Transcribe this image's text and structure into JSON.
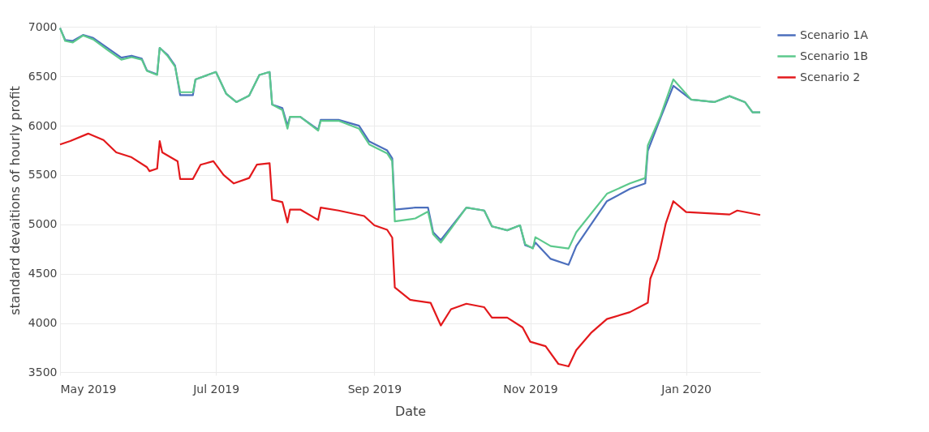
{
  "chart_data": {
    "type": "line",
    "xlabel": "Date",
    "ylabel": "standard devaitions of hourly profit",
    "xlim": [
      "2019-05-01",
      "2020-01-30"
    ],
    "ylim": [
      3470,
      7020
    ],
    "xticks": [
      {
        "value": "2019-05-01",
        "label": "May 2019"
      },
      {
        "value": "2019-07-01",
        "label": "Jul 2019"
      },
      {
        "value": "2019-09-01",
        "label": "Sep 2019"
      },
      {
        "value": "2019-11-01",
        "label": "Nov 2019"
      },
      {
        "value": "2020-01-01",
        "label": "Jan 2020"
      }
    ],
    "yticks": [
      3500,
      4000,
      4500,
      5000,
      5500,
      6000,
      6500,
      7000
    ],
    "grid": true,
    "legend": "top right",
    "line_style": "solid",
    "marker": "none",
    "series": [
      {
        "name": "Scenario 1A",
        "color": "#4c6fbd",
        "x": [
          "2019-05-01",
          "2019-05-03",
          "2019-05-06",
          "2019-05-10",
          "2019-05-14",
          "2019-05-20",
          "2019-05-25",
          "2019-05-29",
          "2019-06-02",
          "2019-06-04",
          "2019-06-08",
          "2019-06-09",
          "2019-06-12",
          "2019-06-15",
          "2019-06-17",
          "2019-06-22",
          "2019-06-23",
          "2019-07-01",
          "2019-07-05",
          "2019-07-09",
          "2019-07-14",
          "2019-07-18",
          "2019-07-22",
          "2019-07-23",
          "2019-07-27",
          "2019-07-29",
          "2019-07-30",
          "2019-08-03",
          "2019-08-10",
          "2019-08-11",
          "2019-08-18",
          "2019-08-26",
          "2019-08-30",
          "2019-09-06",
          "2019-09-08",
          "2019-09-09",
          "2019-09-17",
          "2019-09-22",
          "2019-09-24",
          "2019-09-27",
          "2019-10-07",
          "2019-10-14",
          "2019-10-17",
          "2019-10-23",
          "2019-10-28",
          "2019-10-30",
          "2019-11-02",
          "2019-11-03",
          "2019-11-09",
          "2019-11-16",
          "2019-11-19",
          "2019-12-01",
          "2019-12-10",
          "2019-12-16",
          "2019-12-17",
          "2019-12-22",
          "2019-12-27",
          "2020-01-03",
          "2020-01-12",
          "2020-01-18",
          "2020-01-24",
          "2020-01-27",
          "2020-01-30"
        ],
        "values": [
          6990,
          6870,
          6860,
          6920,
          6890,
          6780,
          6690,
          6710,
          6680,
          6560,
          6520,
          6790,
          6720,
          6610,
          6310,
          6310,
          6470,
          6545,
          6325,
          6240,
          6305,
          6515,
          6545,
          6215,
          6180,
          6000,
          6090,
          6090,
          5960,
          6060,
          6060,
          6000,
          5840,
          5750,
          5670,
          5150,
          5170,
          5170,
          4920,
          4840,
          5170,
          5140,
          4980,
          4940,
          4990,
          4790,
          4760,
          4815,
          4650,
          4590,
          4780,
          5235,
          5360,
          5415,
          5745,
          6080,
          6405,
          6265,
          6240,
          6300,
          6240,
          6135,
          6135
        ]
      },
      {
        "name": "Scenario 1B",
        "color": "#5cc98c",
        "x": [
          "2019-05-01",
          "2019-05-03",
          "2019-05-06",
          "2019-05-10",
          "2019-05-14",
          "2019-05-20",
          "2019-05-25",
          "2019-05-29",
          "2019-06-02",
          "2019-06-04",
          "2019-06-08",
          "2019-06-09",
          "2019-06-12",
          "2019-06-15",
          "2019-06-17",
          "2019-06-22",
          "2019-06-23",
          "2019-07-01",
          "2019-07-05",
          "2019-07-09",
          "2019-07-14",
          "2019-07-18",
          "2019-07-22",
          "2019-07-23",
          "2019-07-27",
          "2019-07-29",
          "2019-07-30",
          "2019-08-03",
          "2019-08-10",
          "2019-08-11",
          "2019-08-18",
          "2019-08-26",
          "2019-08-30",
          "2019-09-06",
          "2019-09-08",
          "2019-09-09",
          "2019-09-17",
          "2019-09-22",
          "2019-09-24",
          "2019-09-27",
          "2019-10-07",
          "2019-10-14",
          "2019-10-17",
          "2019-10-23",
          "2019-10-28",
          "2019-10-30",
          "2019-11-02",
          "2019-11-03",
          "2019-11-09",
          "2019-11-16",
          "2019-11-19",
          "2019-12-01",
          "2019-12-10",
          "2019-12-16",
          "2019-12-17",
          "2019-12-22",
          "2019-12-27",
          "2020-01-03",
          "2020-01-12",
          "2020-01-18",
          "2020-01-24",
          "2020-01-27",
          "2020-01-30"
        ],
        "values": [
          6990,
          6860,
          6845,
          6915,
          6875,
          6760,
          6670,
          6695,
          6670,
          6555,
          6515,
          6790,
          6710,
          6600,
          6340,
          6340,
          6470,
          6545,
          6325,
          6240,
          6305,
          6515,
          6545,
          6215,
          6160,
          5970,
          6090,
          6090,
          5950,
          6050,
          6050,
          5970,
          5810,
          5720,
          5640,
          5030,
          5060,
          5130,
          4900,
          4815,
          5170,
          5140,
          4980,
          4940,
          4990,
          4800,
          4755,
          4870,
          4780,
          4755,
          4920,
          5310,
          5415,
          5470,
          5800,
          6100,
          6470,
          6265,
          6240,
          6300,
          6240,
          6135,
          6135
        ]
      },
      {
        "name": "Scenario 2",
        "color": "#e3191c",
        "x": [
          "2019-05-01",
          "2019-05-05",
          "2019-05-12",
          "2019-05-18",
          "2019-05-23",
          "2019-05-29",
          "2019-06-04",
          "2019-06-05",
          "2019-06-08",
          "2019-06-09",
          "2019-06-10",
          "2019-06-16",
          "2019-06-17",
          "2019-06-22",
          "2019-06-25",
          "2019-06-30",
          "2019-07-04",
          "2019-07-08",
          "2019-07-14",
          "2019-07-17",
          "2019-07-22",
          "2019-07-23",
          "2019-07-27",
          "2019-07-29",
          "2019-07-30",
          "2019-08-03",
          "2019-08-10",
          "2019-08-11",
          "2019-08-18",
          "2019-08-28",
          "2019-09-01",
          "2019-09-06",
          "2019-09-08",
          "2019-09-09",
          "2019-09-15",
          "2019-09-23",
          "2019-09-27",
          "2019-10-01",
          "2019-10-07",
          "2019-10-14",
          "2019-10-17",
          "2019-10-23",
          "2019-10-29",
          "2019-11-01",
          "2019-11-07",
          "2019-11-12",
          "2019-11-16",
          "2019-11-19",
          "2019-11-25",
          "2019-12-01",
          "2019-12-10",
          "2019-12-17",
          "2019-12-18",
          "2019-12-21",
          "2019-12-24",
          "2019-12-27",
          "2020-01-01",
          "2020-01-18",
          "2020-01-21",
          "2020-01-30"
        ],
        "values": [
          5810,
          5845,
          5920,
          5855,
          5730,
          5680,
          5580,
          5540,
          5565,
          5845,
          5730,
          5640,
          5460,
          5460,
          5605,
          5640,
          5500,
          5415,
          5470,
          5605,
          5620,
          5250,
          5225,
          5020,
          5150,
          5150,
          5045,
          5170,
          5140,
          5085,
          4990,
          4945,
          4865,
          4360,
          4235,
          4205,
          3975,
          4140,
          4195,
          4160,
          4055,
          4055,
          3955,
          3810,
          3765,
          3585,
          3560,
          3725,
          3905,
          4040,
          4110,
          4205,
          4450,
          4650,
          5005,
          5235,
          5125,
          5100,
          5140,
          5095
        ]
      }
    ]
  }
}
